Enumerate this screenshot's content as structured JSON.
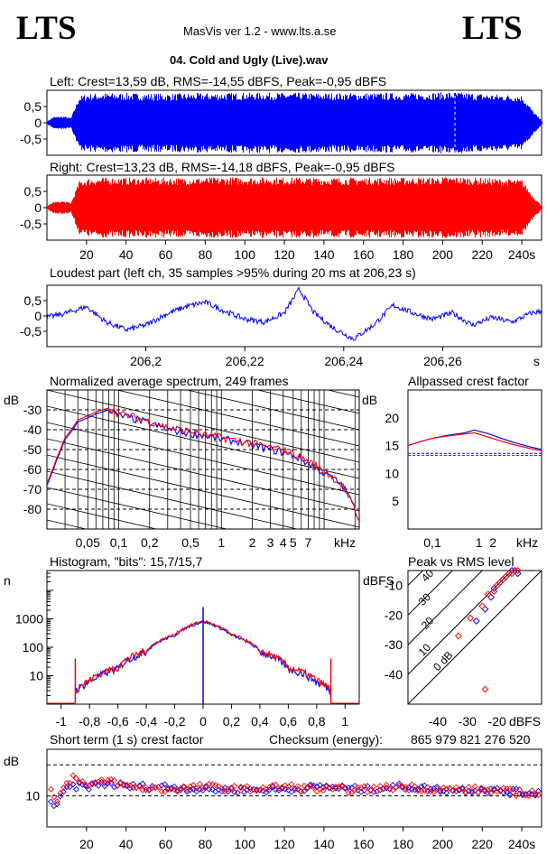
{
  "header": {
    "logo_left": "LTS",
    "logo_right": "LTS",
    "app_title": "MasVis ver 1.2 - www.lts.a.se",
    "file_name": "04. Cold and Ugly (Live).wav"
  },
  "colors": {
    "left": "#0000ff",
    "right": "#ff0000",
    "grid": "#000000"
  },
  "chart_data": [
    {
      "id": "left-waveform",
      "type": "line",
      "title": "Left: Crest=13,59 dB, RMS=-14,55 dBFS, Peak=-0,95 dBFS",
      "yticks": [
        "0,5",
        "0",
        "-0,5"
      ],
      "ylim": [
        -1,
        1
      ],
      "xlim": [
        0,
        250
      ],
      "envelope": {
        "x": [
          0,
          3,
          8,
          12,
          16,
          20,
          30,
          60,
          100,
          140,
          180,
          206,
          220,
          240,
          245,
          250
        ],
        "amp": [
          0.05,
          0.18,
          0.2,
          0.15,
          0.82,
          0.9,
          0.92,
          0.9,
          0.93,
          0.92,
          0.92,
          0.95,
          0.9,
          0.85,
          0.4,
          0.05
        ]
      },
      "marker_x": 206.23
    },
    {
      "id": "right-waveform",
      "type": "line",
      "title": "Right: Crest=13,23 dB, RMS=-14,18 dBFS, Peak=-0,95 dBFS",
      "yticks": [
        "0,5",
        "0",
        "-0,5"
      ],
      "ylim": [
        -1,
        1
      ],
      "xlim": [
        0,
        250
      ],
      "xticks": [
        20,
        40,
        60,
        80,
        100,
        120,
        140,
        160,
        180,
        200,
        220,
        240
      ],
      "xtick_labels": [
        "20",
        "40",
        "60",
        "80",
        "100",
        "120",
        "140",
        "160",
        "180",
        "200",
        "220",
        "240s"
      ],
      "envelope": {
        "x": [
          0,
          3,
          8,
          12,
          16,
          20,
          30,
          60,
          100,
          140,
          180,
          206,
          220,
          240,
          245,
          250
        ],
        "amp": [
          0.05,
          0.18,
          0.2,
          0.15,
          0.82,
          0.9,
          0.93,
          0.92,
          0.94,
          0.93,
          0.93,
          0.95,
          0.92,
          0.86,
          0.4,
          0.05
        ]
      }
    },
    {
      "id": "loudest-part",
      "type": "line",
      "title": "Loudest part (left  ch, 35 samples >95% during 20 ms at 206,23 s)",
      "yticks": [
        "0,5",
        "0",
        "-0,5"
      ],
      "ylim": [
        -1,
        1
      ],
      "xlim": [
        206.18,
        206.28
      ],
      "xticks": [
        206.2,
        206.22,
        206.24,
        206.26
      ],
      "xtick_labels": [
        "206,2",
        "206,22",
        "206,24",
        "206,26"
      ],
      "xunit": "s",
      "x": [
        206.18,
        206.184,
        206.188,
        206.192,
        206.196,
        206.2,
        206.204,
        206.208,
        206.212,
        206.216,
        206.22,
        206.224,
        206.228,
        206.231,
        206.234,
        206.238,
        206.242,
        206.246,
        206.25,
        206.254,
        206.258,
        206.262,
        206.266,
        206.27,
        206.274,
        206.278,
        206.28
      ],
      "y": [
        -0.05,
        0.1,
        0.3,
        -0.2,
        -0.45,
        -0.3,
        0.05,
        0.3,
        0.45,
        0.15,
        -0.1,
        -0.2,
        0.1,
        0.88,
        0.1,
        -0.4,
        -0.75,
        -0.3,
        0.35,
        0.1,
        -0.1,
        0.1,
        -0.3,
        -0.05,
        -0.2,
        0.1,
        0.15
      ]
    },
    {
      "id": "average-spectrum",
      "type": "line",
      "title": "Normalized average spectrum, 249 frames",
      "ylabel": "dB",
      "yticks": [
        -30,
        -40,
        -50,
        -60,
        -70,
        -80
      ],
      "ylim": [
        -90,
        -20
      ],
      "xscale": "log",
      "xlim": [
        0.02,
        22
      ],
      "xticks": [
        0.05,
        0.1,
        0.2,
        0.5,
        1,
        2,
        3,
        4,
        5,
        7
      ],
      "xtick_labels": [
        "0,05",
        "0,1",
        "0,2",
        "0,5",
        "1",
        "2",
        "3",
        "4",
        "5",
        "7"
      ],
      "xunit": "kHz",
      "series": [
        {
          "color": "#0000ff",
          "x": [
            0.02,
            0.025,
            0.03,
            0.04,
            0.05,
            0.06,
            0.08,
            0.1,
            0.15,
            0.2,
            0.3,
            0.5,
            0.7,
            1,
            1.5,
            2,
            3,
            5,
            7,
            10,
            15,
            22
          ],
          "y": [
            -68,
            -55,
            -45,
            -36,
            -34,
            -32,
            -30,
            -33,
            -35,
            -37,
            -40,
            -42,
            -43,
            -45,
            -46,
            -48,
            -50,
            -53,
            -57,
            -62,
            -68,
            -85
          ]
        },
        {
          "color": "#ff0000",
          "x": [
            0.02,
            0.025,
            0.03,
            0.04,
            0.05,
            0.06,
            0.08,
            0.1,
            0.15,
            0.2,
            0.3,
            0.5,
            0.7,
            1,
            1.5,
            2,
            3,
            5,
            7,
            10,
            15,
            22
          ],
          "y": [
            -67,
            -54,
            -44,
            -35,
            -33,
            -31,
            -29,
            -32,
            -34,
            -36,
            -39,
            -41,
            -43,
            -44,
            -46,
            -47,
            -49,
            -52,
            -56,
            -61,
            -68,
            -86
          ]
        }
      ]
    },
    {
      "id": "allpassed-crest",
      "type": "line",
      "title": "Allpassed crest factor",
      "ylabel": "dB",
      "yticks": [
        20,
        15,
        10,
        5
      ],
      "ylim": [
        0,
        25
      ],
      "xscale": "log",
      "xlim": [
        0.03,
        22
      ],
      "xticks": [
        0.1,
        1,
        2
      ],
      "xtick_labels": [
        "0,1",
        "1",
        "2"
      ],
      "xunit": "kHz",
      "reference_lines": [
        13.59,
        13.23
      ],
      "series": [
        {
          "color": "#0000ff",
          "x": [
            0.03,
            0.06,
            0.1,
            0.2,
            0.5,
            0.8,
            1.5,
            3,
            6,
            12,
            22
          ],
          "y": [
            15,
            15.8,
            16.3,
            16.8,
            17.3,
            17.8,
            17.2,
            16.3,
            15.5,
            14.8,
            14.3
          ]
        },
        {
          "color": "#ff0000",
          "x": [
            0.03,
            0.06,
            0.1,
            0.2,
            0.5,
            0.8,
            1.5,
            3,
            6,
            12,
            22
          ],
          "y": [
            15,
            15.8,
            16.3,
            16.7,
            17.1,
            17.3,
            16.6,
            15.8,
            15.1,
            14.5,
            14.1
          ]
        }
      ]
    },
    {
      "id": "histogram",
      "type": "line",
      "title": "Histogram, \"bits\": 15,7/15,7",
      "ylabel": "n",
      "yscale": "log",
      "yticks": [
        1000,
        100,
        10
      ],
      "ylim": [
        1,
        50000
      ],
      "xlim": [
        -1.1,
        1.1
      ],
      "xticks": [
        -1,
        -0.8,
        -0.6,
        -0.4,
        -0.2,
        0,
        0.2,
        0.4,
        0.6,
        0.8,
        1
      ],
      "xtick_labels": [
        "-1",
        "-0,8",
        "-0,6",
        "-0,4",
        "-0,2",
        "0",
        "0,2",
        "0,4",
        "0,6",
        "0,8",
        "1"
      ],
      "clip_level": 0.9,
      "series": [
        {
          "color": "#0000ff",
          "x": [
            -0.9,
            -0.8,
            -0.6,
            -0.4,
            -0.2,
            0,
            0.2,
            0.4,
            0.6,
            0.8,
            0.9
          ],
          "y": [
            3,
            6,
            18,
            70,
            260,
            800,
            260,
            70,
            18,
            6,
            3
          ]
        },
        {
          "color": "#ff0000",
          "x": [
            -0.9,
            -0.8,
            -0.6,
            -0.4,
            -0.2,
            0,
            0.2,
            0.4,
            0.6,
            0.8,
            0.9
          ],
          "y": [
            3,
            7,
            20,
            75,
            280,
            850,
            280,
            75,
            20,
            7,
            3
          ]
        }
      ]
    },
    {
      "id": "peak-vs-rms",
      "type": "scatter",
      "title": "Peak vs RMS level",
      "ylabel": "dBFS",
      "xlabel": "dBFS",
      "xlim": [
        -50,
        -5
      ],
      "ylim": [
        -50,
        -5
      ],
      "xticks": [
        -40,
        -30,
        -20
      ],
      "yticks": [
        -10,
        -20,
        -30,
        -40
      ],
      "crest_lines": [
        0,
        10,
        20,
        30,
        40
      ],
      "crest_labels": [
        "0 dB",
        "10",
        "20",
        "30",
        "40"
      ],
      "series": [
        {
          "color": "#0000ff",
          "x": [
            -27,
            -24,
            -22,
            -21,
            -20,
            -19,
            -18,
            -17,
            -16,
            -15,
            -14,
            -13
          ],
          "y": [
            -22,
            -18,
            -14,
            -11,
            -10,
            -9,
            -8,
            -7,
            -6,
            -5,
            -5,
            -6
          ]
        },
        {
          "color": "#ff0000",
          "x": [
            -33,
            -29,
            -25,
            -23,
            -21,
            -20,
            -19,
            -18,
            -17,
            -16,
            -15,
            -14,
            -13,
            -24
          ],
          "y": [
            -27,
            -21,
            -17,
            -13,
            -12,
            -10,
            -9,
            -8,
            -7,
            -6,
            -6,
            -5,
            -5,
            -45
          ]
        }
      ]
    },
    {
      "id": "short-term-crest",
      "type": "scatter",
      "title": "Short term (1 s) crest factor",
      "checksum_label": "Checksum (energy):",
      "checksum_value": "865 979 821 276 520",
      "ylabel": "dB",
      "yticks": [
        10
      ],
      "ylim": [
        0,
        25
      ],
      "xlim": [
        0,
        250
      ],
      "reference_lines": [
        10,
        20
      ],
      "xticks": [
        20,
        40,
        60,
        80,
        100,
        120,
        140,
        160,
        180,
        200,
        220,
        240
      ],
      "xtick_labels": [
        "20",
        "40",
        "60",
        "80",
        "100",
        "120",
        "140",
        "160",
        "180",
        "200",
        "220",
        "240s"
      ],
      "series": [
        {
          "color": "#0000ff",
          "x": [
            2,
            5,
            8,
            12,
            20,
            30,
            40,
            60,
            80,
            100,
            120,
            140,
            160,
            180,
            200,
            220,
            240
          ],
          "y": [
            8,
            6,
            11,
            13,
            13,
            14,
            13,
            13,
            12,
            12,
            12,
            13,
            12,
            13,
            12,
            12,
            11
          ]
        },
        {
          "color": "#ff0000",
          "x": [
            2,
            5,
            8,
            14,
            20,
            32,
            40,
            60,
            80,
            100,
            120,
            140,
            160,
            180,
            200,
            220,
            240
          ],
          "y": [
            12,
            9,
            12,
            17,
            13,
            15,
            13,
            12,
            13,
            12,
            13,
            12,
            12,
            13,
            12,
            12,
            11
          ]
        }
      ]
    }
  ]
}
